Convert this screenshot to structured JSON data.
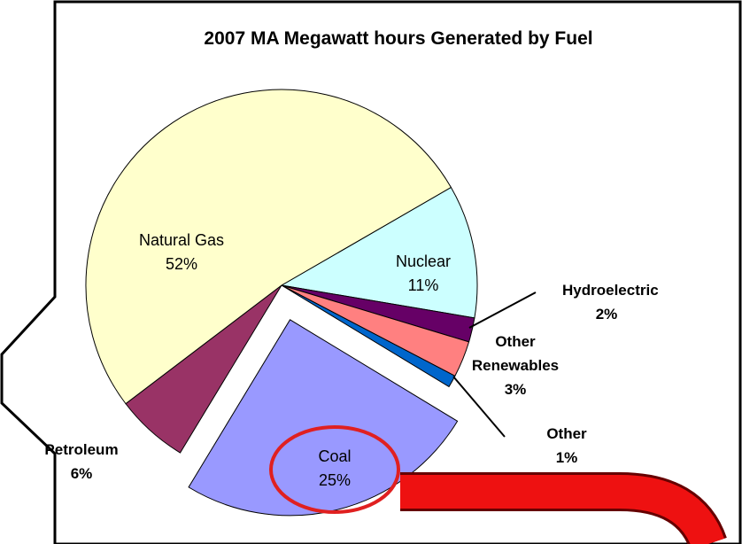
{
  "chart_data": {
    "type": "pie",
    "title": "2007 MA Megawatt hours Generated by Fuel",
    "categories": [
      "Nuclear",
      "Hydroelectric",
      "Other Renewables",
      "Other",
      "Coal",
      "Petroleum",
      "Natural Gas"
    ],
    "values": [
      11,
      2,
      3,
      1,
      25,
      6,
      52
    ],
    "value_labels": [
      "11%",
      "2%",
      "3%",
      "1%",
      "25%",
      "6%",
      "52%"
    ],
    "colors": [
      "#ccffff",
      "#660066",
      "#ff8080",
      "#0066cc",
      "#9999ff",
      "#993366",
      "#ffffcc"
    ],
    "exploded": "Coal"
  }
}
